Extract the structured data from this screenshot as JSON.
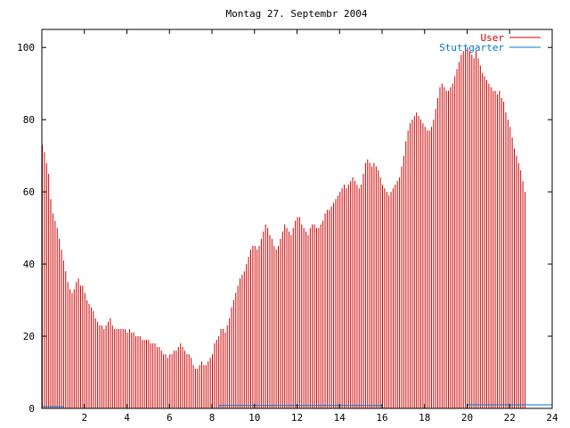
{
  "chart_data": {
    "type": "bar",
    "title": "Montag 27. Septembr 2004",
    "xlabel": "",
    "ylabel": "",
    "xlim": [
      0,
      24
    ],
    "ylim": [
      0,
      105
    ],
    "x_ticks": [
      2,
      4,
      6,
      8,
      10,
      12,
      14,
      16,
      18,
      20,
      22,
      24
    ],
    "y_ticks": [
      0,
      20,
      40,
      60,
      80,
      100
    ],
    "grid": false,
    "legend_position": "top-right",
    "colors": {
      "User": "#cc0000",
      "Stuttgarter": "#0077cc"
    },
    "series": [
      {
        "name": "User",
        "style": "impulses",
        "x_start": 0,
        "x_step": 0.1,
        "values": [
          73,
          71,
          68,
          65,
          58,
          54,
          52,
          50,
          47,
          44,
          41,
          38,
          35,
          33,
          32,
          33,
          35,
          36,
          34,
          34,
          32,
          30,
          29,
          28,
          27,
          25,
          24,
          23,
          23,
          22,
          23,
          24,
          25,
          23,
          22,
          22,
          22,
          22,
          22,
          22,
          21,
          22,
          21,
          21,
          20,
          20,
          20,
          19,
          19,
          19,
          19,
          18,
          18,
          18,
          17,
          17,
          16,
          15,
          15,
          14,
          15,
          15,
          16,
          16,
          17,
          18,
          17,
          16,
          15,
          15,
          14,
          12,
          11,
          11,
          12,
          13,
          12,
          12,
          13,
          14,
          15,
          18,
          19,
          20,
          22,
          22,
          21,
          23,
          25,
          28,
          30,
          32,
          34,
          36,
          37,
          38,
          40,
          42,
          44,
          45,
          45,
          44,
          45,
          47,
          49,
          51,
          50,
          48,
          47,
          45,
          44,
          45,
          47,
          49,
          51,
          50,
          49,
          48,
          50,
          52,
          53,
          53,
          51,
          50,
          49,
          48,
          50,
          51,
          51,
          50,
          50,
          51,
          52,
          54,
          55,
          55,
          56,
          57,
          58,
          59,
          60,
          61,
          62,
          61,
          62,
          63,
          64,
          63,
          62,
          61,
          62,
          65,
          68,
          69,
          68,
          67,
          68,
          67,
          66,
          64,
          62,
          61,
          60,
          59,
          60,
          61,
          62,
          63,
          64,
          67,
          70,
          74,
          77,
          79,
          80,
          81,
          82,
          81,
          80,
          79,
          78,
          77,
          77,
          78,
          80,
          83,
          86,
          89,
          90,
          89,
          88,
          88,
          89,
          90,
          92,
          94,
          96,
          98,
          99,
          100,
          100,
          99,
          98,
          97,
          99,
          97,
          95,
          93,
          92,
          91,
          90,
          89,
          88,
          88,
          87,
          88,
          86,
          85,
          82,
          80,
          78,
          75,
          72,
          70,
          68,
          66,
          63,
          60
        ]
      },
      {
        "name": "Stuttgarter",
        "style": "line",
        "points": [
          [
            0,
            0.5
          ],
          [
            1,
            0.5
          ],
          [
            1.05,
            0
          ],
          [
            8.3,
            0
          ],
          [
            8.35,
            0.8
          ],
          [
            16,
            0.8
          ],
          [
            16.05,
            0
          ],
          [
            20,
            0
          ],
          [
            20.05,
            1
          ],
          [
            24,
            1
          ]
        ]
      }
    ]
  }
}
